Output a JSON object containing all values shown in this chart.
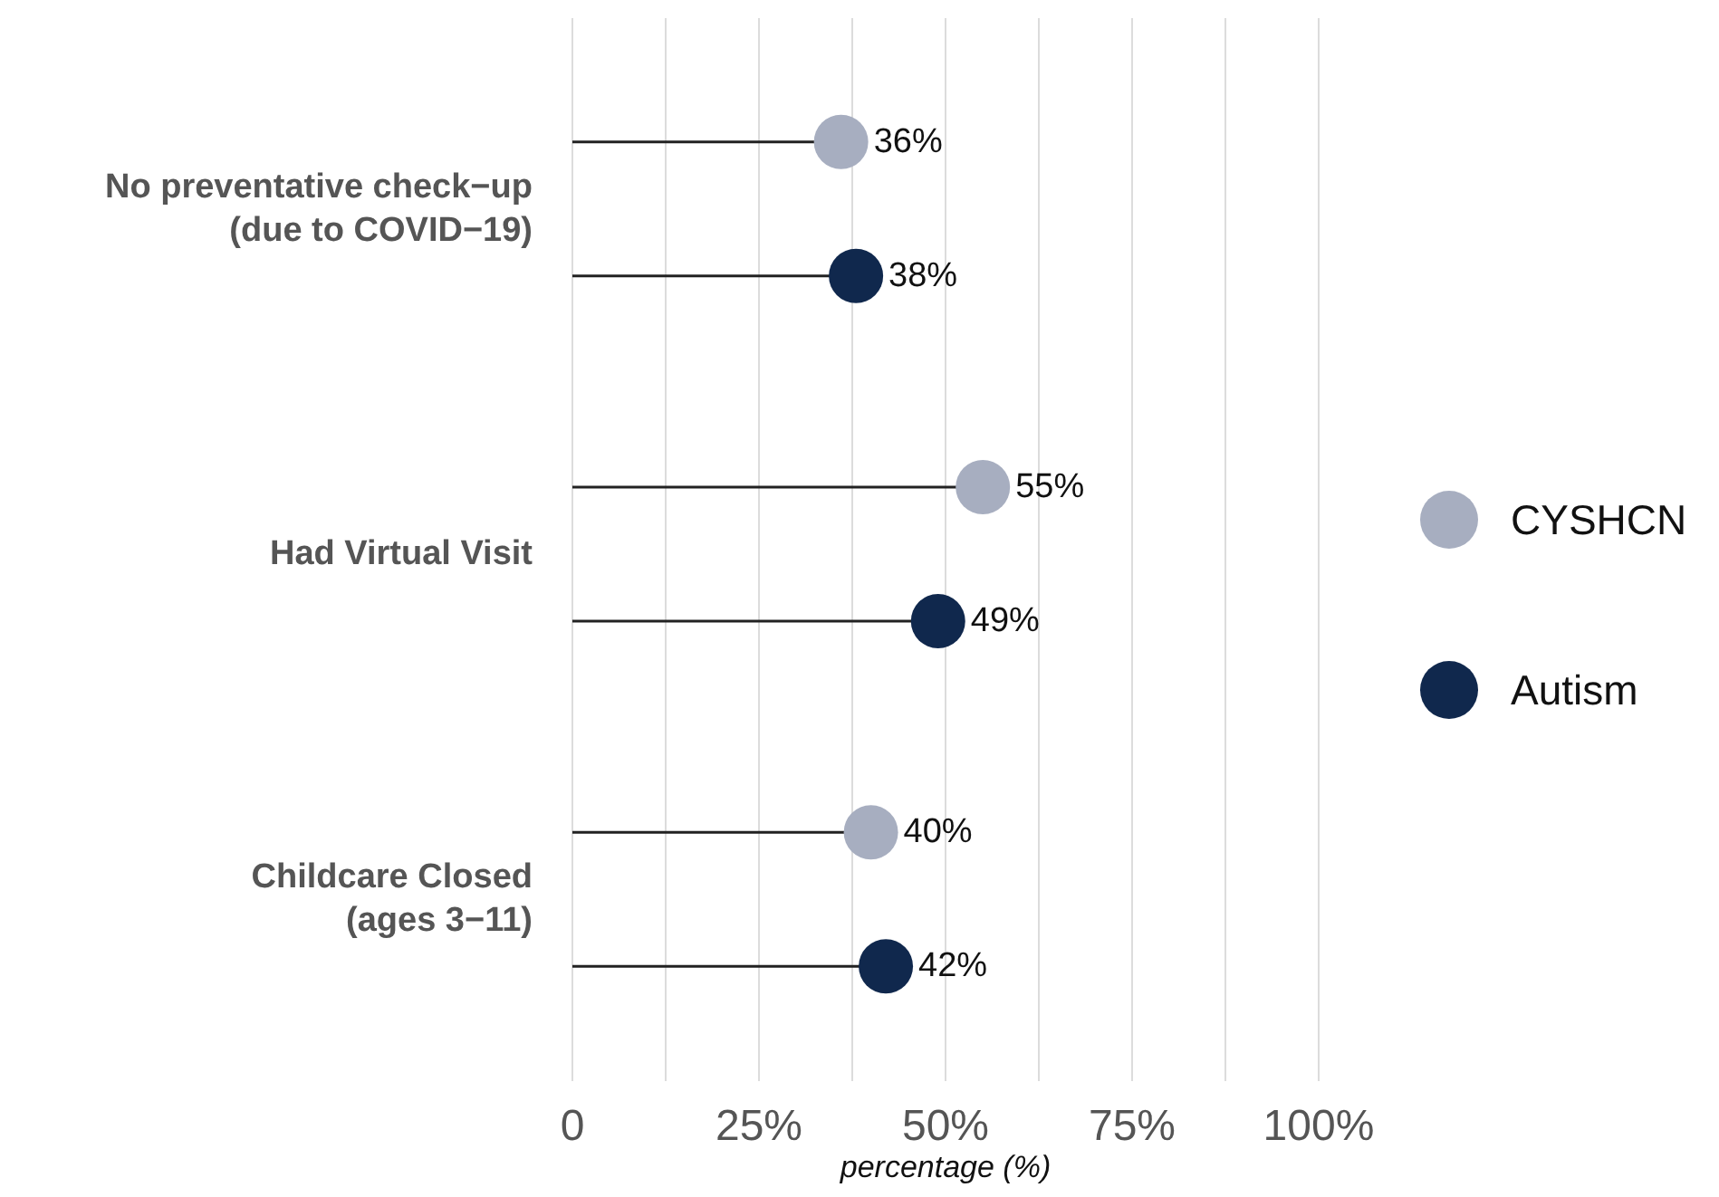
{
  "chart_data": {
    "type": "lollipop",
    "orientation": "horizontal",
    "xlabel": "percentage (%)",
    "categories": [
      "No preventative check−up\n(due to COVID−19)",
      "Had Virtual Visit",
      "Childcare Closed\n(ages 3−11)"
    ],
    "series": [
      {
        "name": "CYSHCN",
        "color": "#a7aec0",
        "values": [
          36,
          55,
          40
        ],
        "value_labels": [
          "36%",
          "55%",
          "40%"
        ]
      },
      {
        "name": "Autism",
        "color": "#10284d",
        "values": [
          38,
          49,
          42
        ],
        "value_labels": [
          "38%",
          "49%",
          "42%"
        ]
      }
    ],
    "xlim": [
      0,
      100
    ],
    "xticks": [
      0,
      {
        "value": 12.5,
        "label": null
      },
      {
        "value": 25,
        "label": "25%"
      },
      {
        "value": 37.5,
        "label": null
      },
      {
        "value": 50,
        "label": "50%"
      },
      {
        "value": 62.5,
        "label": null
      },
      {
        "value": 75,
        "label": "75%"
      },
      {
        "value": 87.5,
        "label": null
      },
      {
        "value": 100,
        "label": "100%"
      }
    ],
    "grid": "x",
    "legend": "right",
    "marker": "circle"
  }
}
